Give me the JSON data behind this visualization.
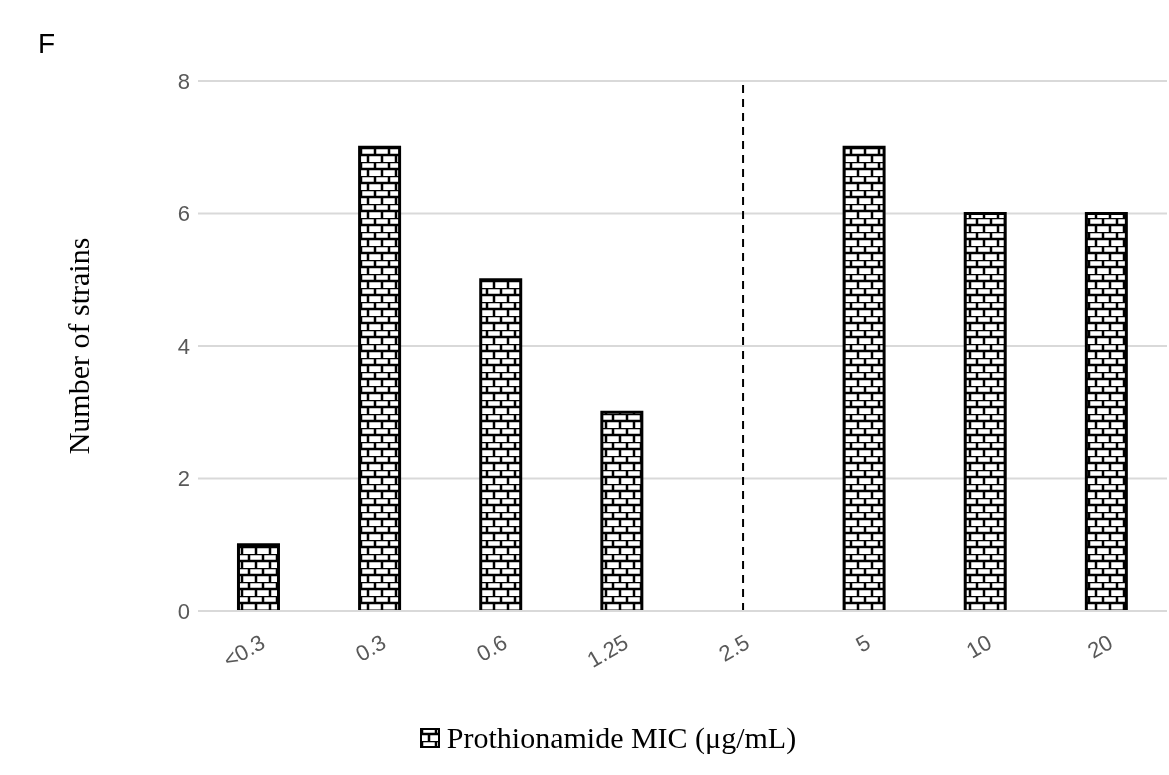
{
  "chart_data": {
    "type": "bar",
    "title": "F",
    "ylabel": "Number of strains",
    "categories": [
      "<0.3",
      "0.3",
      "0.6",
      "1.25",
      "2.5",
      "5",
      "10",
      "20"
    ],
    "series": [
      {
        "name": "Prothionamide MIC (μg/mL)",
        "color": "#000000",
        "values": [
          1,
          7,
          5,
          3,
          0,
          7,
          6,
          6
        ]
      }
    ],
    "ylim": [
      0,
      8
    ],
    "yticks": [
      0,
      2,
      4,
      6,
      8
    ],
    "grid": "y",
    "legend": "bottom",
    "ref_lines": [
      {
        "axis": "x",
        "value": "2.5",
        "line_style": "dashed",
        "color": "#000000"
      }
    ]
  }
}
